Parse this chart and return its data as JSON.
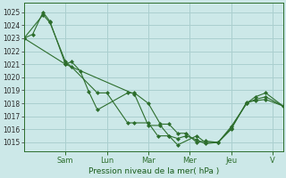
{
  "bg_color": "#cce8e8",
  "grid_color": "#aacfcf",
  "line_color": "#2d6e2d",
  "marker_color": "#2d6e2d",
  "xlabel_text": "Pression niveau de la mer( hPa )",
  "ylim": [
    1014.3,
    1025.7
  ],
  "yticks": [
    1015,
    1016,
    1017,
    1018,
    1019,
    1020,
    1021,
    1022,
    1023,
    1024,
    1025
  ],
  "day_labels": [
    "Sam",
    "Lun",
    "Mar",
    "Mer",
    "Jeu",
    "V"
  ],
  "day_positions": [
    48,
    96,
    144,
    192,
    240,
    288
  ],
  "xlim": [
    0,
    300
  ],
  "series1_x": [
    0,
    10,
    22,
    30,
    48,
    55,
    65,
    75,
    85,
    120,
    128,
    144,
    158,
    168,
    178,
    188,
    200,
    210,
    225,
    240,
    258,
    268,
    280,
    300
  ],
  "series1_y": [
    1023.0,
    1023.3,
    1025.0,
    1024.3,
    1021.0,
    1021.2,
    1020.5,
    1018.9,
    1017.5,
    1018.8,
    1018.8,
    1018.0,
    1016.4,
    1016.4,
    1015.7,
    1015.7,
    1015.0,
    1015.1,
    1015.0,
    1016.1,
    1018.0,
    1018.3,
    1018.5,
    1017.8
  ],
  "series2_x": [
    0,
    22,
    30,
    48,
    55,
    85,
    96,
    120,
    128,
    144,
    155,
    168,
    178,
    200,
    210,
    225,
    240,
    258,
    268,
    280,
    300
  ],
  "series2_y": [
    1023.0,
    1024.8,
    1024.2,
    1021.2,
    1020.8,
    1018.8,
    1018.8,
    1016.5,
    1016.5,
    1016.5,
    1015.5,
    1015.5,
    1014.8,
    1015.5,
    1015.0,
    1015.0,
    1016.2,
    1018.0,
    1018.5,
    1018.8,
    1017.8
  ],
  "series3_x": [
    0,
    48,
    128,
    144,
    158,
    168,
    178,
    188,
    200,
    210,
    225,
    240,
    258,
    268,
    280,
    300
  ],
  "series3_y": [
    1023.0,
    1021.0,
    1018.7,
    1016.3,
    1016.3,
    1015.5,
    1015.3,
    1015.5,
    1015.2,
    1014.9,
    1015.0,
    1016.0,
    1018.1,
    1018.2,
    1018.3,
    1017.8
  ]
}
